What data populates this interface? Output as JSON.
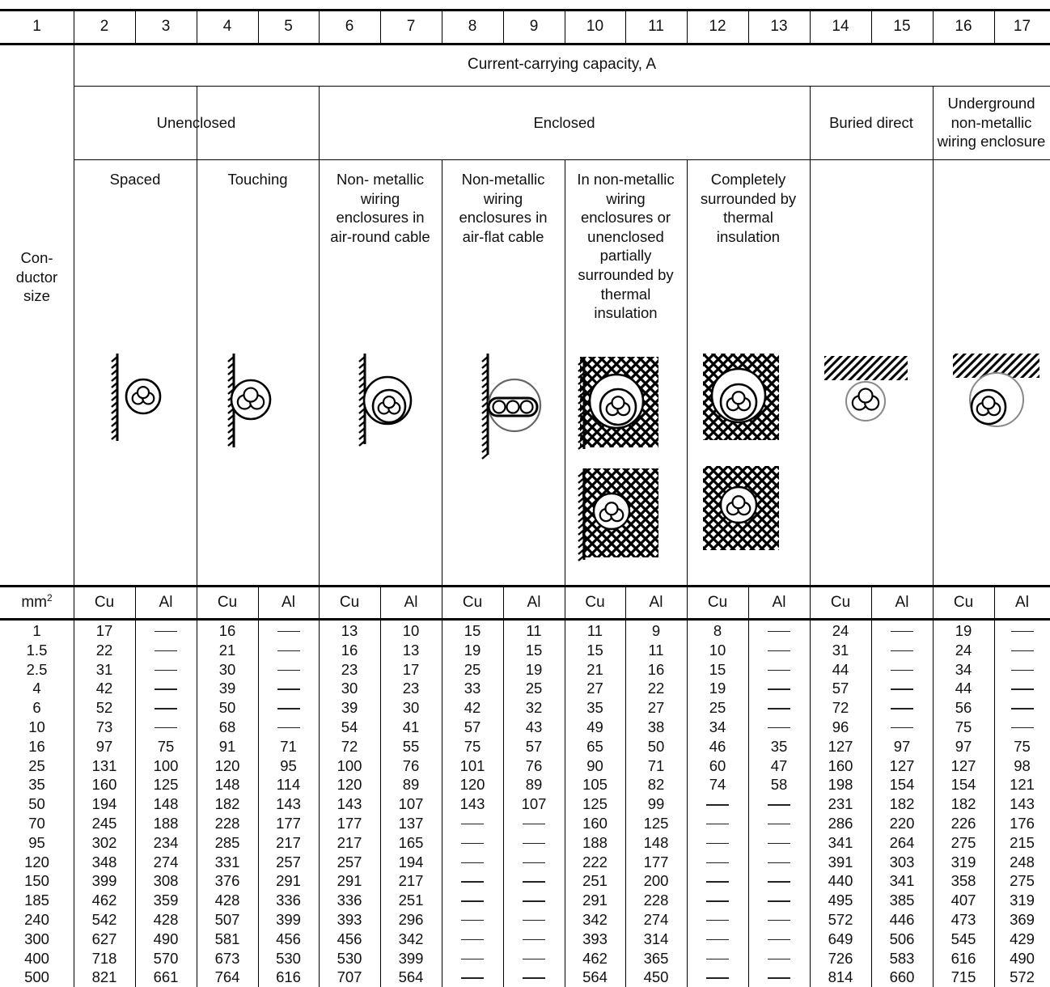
{
  "column_numbers": [
    "1",
    "2",
    "3",
    "4",
    "5",
    "6",
    "7",
    "8",
    "9",
    "10",
    "11",
    "12",
    "13",
    "14",
    "15",
    "16",
    "17"
  ],
  "header": {
    "main": "Current-carrying capacity, A",
    "conductor_size": "Con-\nductor\nsize",
    "groups": [
      "Unenclosed",
      "Enclosed",
      "Buried direct",
      "Underground\nnon-metallic\nwiring enclosure"
    ],
    "subgroups": [
      "Spaced",
      "Touching",
      "Non- metallic\nwiring\nenclosures in\nair-round cable",
      "Non-metallic\nwiring\nenclosures in\nair-flat cable",
      "In non-metallic\nwiring\nenclosures or\nunenclosed\npartially\nsurrounded by\nthermal\ninsulation",
      "Completely\nsurrounded by\nthermal\ninsulation"
    ]
  },
  "units_row": [
    "mm2",
    "Cu",
    "Al",
    "Cu",
    "Al",
    "Cu",
    "Al",
    "Cu",
    "Al",
    "Cu",
    "Al",
    "Cu",
    "Al",
    "Cu",
    "Al",
    "Cu",
    "Al"
  ],
  "units_superscript": "2",
  "sizes": [
    "1",
    "1.5",
    "2.5",
    "4",
    "6",
    "10",
    "16",
    "25",
    "35",
    "50",
    "70",
    "95",
    "120",
    "150",
    "185",
    "240",
    "300",
    "400",
    "500"
  ],
  "columns": [
    [
      "17",
      "22",
      "31",
      "42",
      "52",
      "73",
      "97",
      "131",
      "160",
      "194",
      "245",
      "302",
      "348",
      "399",
      "462",
      "542",
      "627",
      "718",
      "821"
    ],
    [
      "—",
      "—",
      "—",
      "—",
      "—",
      "—",
      "75",
      "100",
      "125",
      "148",
      "188",
      "234",
      "274",
      "308",
      "359",
      "428",
      "490",
      "570",
      "661"
    ],
    [
      "16",
      "21",
      "30",
      "39",
      "50",
      "68",
      "91",
      "120",
      "148",
      "182",
      "228",
      "285",
      "331",
      "376",
      "428",
      "507",
      "581",
      "673",
      "764"
    ],
    [
      "—",
      "—",
      "—",
      "—",
      "—",
      "—",
      "71",
      "95",
      "114",
      "143",
      "177",
      "217",
      "257",
      "291",
      "336",
      "399",
      "456",
      "530",
      "616"
    ],
    [
      "13",
      "16",
      "23",
      "30",
      "39",
      "54",
      "72",
      "100",
      "120",
      "143",
      "177",
      "217",
      "257",
      "291",
      "336",
      "393",
      "456",
      "530",
      "707"
    ],
    [
      "10",
      "13",
      "17",
      "23",
      "30",
      "41",
      "55",
      "76",
      "89",
      "107",
      "137",
      "165",
      "194",
      "217",
      "251",
      "296",
      "342",
      "399",
      "564"
    ],
    [
      "15",
      "19",
      "25",
      "33",
      "42",
      "57",
      "75",
      "101",
      "120",
      "143",
      "—",
      "—",
      "—",
      "—",
      "—",
      "—",
      "—",
      "—",
      "—"
    ],
    [
      "11",
      "15",
      "19",
      "25",
      "32",
      "43",
      "57",
      "76",
      "89",
      "107",
      "—",
      "—",
      "—",
      "—",
      "—",
      "—",
      "—",
      "—",
      "—"
    ],
    [
      "11",
      "15",
      "21",
      "27",
      "35",
      "49",
      "65",
      "90",
      "105",
      "125",
      "160",
      "188",
      "222",
      "251",
      "291",
      "342",
      "393",
      "462",
      "564"
    ],
    [
      "9",
      "11",
      "16",
      "22",
      "27",
      "38",
      "50",
      "71",
      "82",
      "99",
      "125",
      "148",
      "177",
      "200",
      "228",
      "274",
      "314",
      "365",
      "450"
    ],
    [
      "8",
      "10",
      "15",
      "19",
      "25",
      "34",
      "46",
      "60",
      "74",
      "—",
      "—",
      "—",
      "—",
      "—",
      "—",
      "—",
      "—",
      "—",
      "—"
    ],
    [
      "—",
      "—",
      "—",
      "—",
      "—",
      "—",
      "35",
      "47",
      "58",
      "—",
      "—",
      "—",
      "—",
      "—",
      "—",
      "—",
      "—",
      "—",
      "—"
    ],
    [
      "24",
      "31",
      "44",
      "57",
      "72",
      "96",
      "127",
      "160",
      "198",
      "231",
      "286",
      "341",
      "391",
      "440",
      "495",
      "572",
      "649",
      "726",
      "814"
    ],
    [
      "—",
      "—",
      "—",
      "—",
      "—",
      "—",
      "97",
      "127",
      "154",
      "182",
      "220",
      "264",
      "303",
      "341",
      "385",
      "446",
      "506",
      "583",
      "660"
    ],
    [
      "19",
      "24",
      "34",
      "44",
      "56",
      "75",
      "97",
      "127",
      "154",
      "182",
      "226",
      "275",
      "319",
      "358",
      "407",
      "473",
      "545",
      "616",
      "715"
    ],
    [
      "—",
      "—",
      "—",
      "—",
      "—",
      "—",
      "75",
      "98",
      "121",
      "143",
      "176",
      "215",
      "248",
      "275",
      "319",
      "369",
      "429",
      "490",
      "572"
    ]
  ],
  "icons": [
    "wall-spaced-cable-icon",
    "wall-touching-cable-icon",
    "wall-round-enclosure-icon",
    "wall-flat-enclosure-icon",
    "insulation-partial-icon",
    "insulation-complete-icon",
    "buried-direct-icon",
    "underground-enclosure-icon"
  ]
}
